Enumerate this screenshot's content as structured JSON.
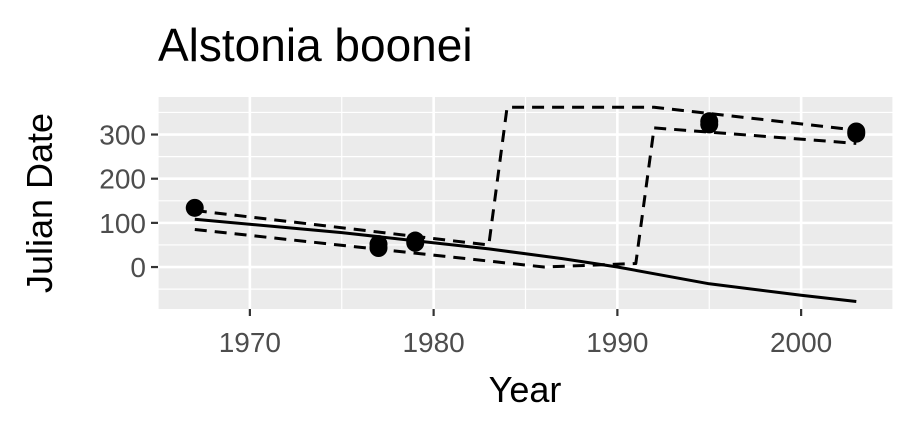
{
  "chart_data": {
    "type": "scatter",
    "title": "Alstonia boonei",
    "xlabel": "Year",
    "ylabel": "Julian Date",
    "xlim": [
      1965,
      2005
    ],
    "ylim": [
      -95,
      385
    ],
    "x_ticks": [
      1970,
      1980,
      1990,
      2000
    ],
    "x_tick_labels": [
      "1970",
      "1980",
      "1990",
      "2000"
    ],
    "y_ticks": [
      0,
      100,
      200,
      300
    ],
    "y_tick_labels": [
      "0",
      "100",
      "200",
      "300"
    ],
    "grid": true,
    "legend": "none",
    "points": [
      {
        "x": 1967,
        "y": 134
      },
      {
        "x": 1977,
        "y": 43
      },
      {
        "x": 1977,
        "y": 52
      },
      {
        "x": 1979,
        "y": 55
      },
      {
        "x": 1979,
        "y": 60
      },
      {
        "x": 1995,
        "y": 323
      },
      {
        "x": 1995,
        "y": 330
      },
      {
        "x": 2003,
        "y": 302
      },
      {
        "x": 2003,
        "y": 307
      }
    ],
    "series": [
      {
        "style": "solid",
        "x": [
          1967,
          1975,
          1983,
          1987,
          1990,
          1995,
          2000,
          2003
        ],
        "y": [
          108,
          78,
          41,
          19,
          0,
          -38,
          -64,
          -78
        ]
      },
      {
        "style": "dashed",
        "x": [
          1967,
          1983,
          1984,
          1992,
          2003
        ],
        "y": [
          128,
          50,
          362,
          362,
          310
        ]
      },
      {
        "style": "dashed",
        "x": [
          1967,
          1986,
          1991,
          1992,
          2003
        ],
        "y": [
          85,
          0,
          8,
          315,
          280
        ]
      }
    ]
  }
}
